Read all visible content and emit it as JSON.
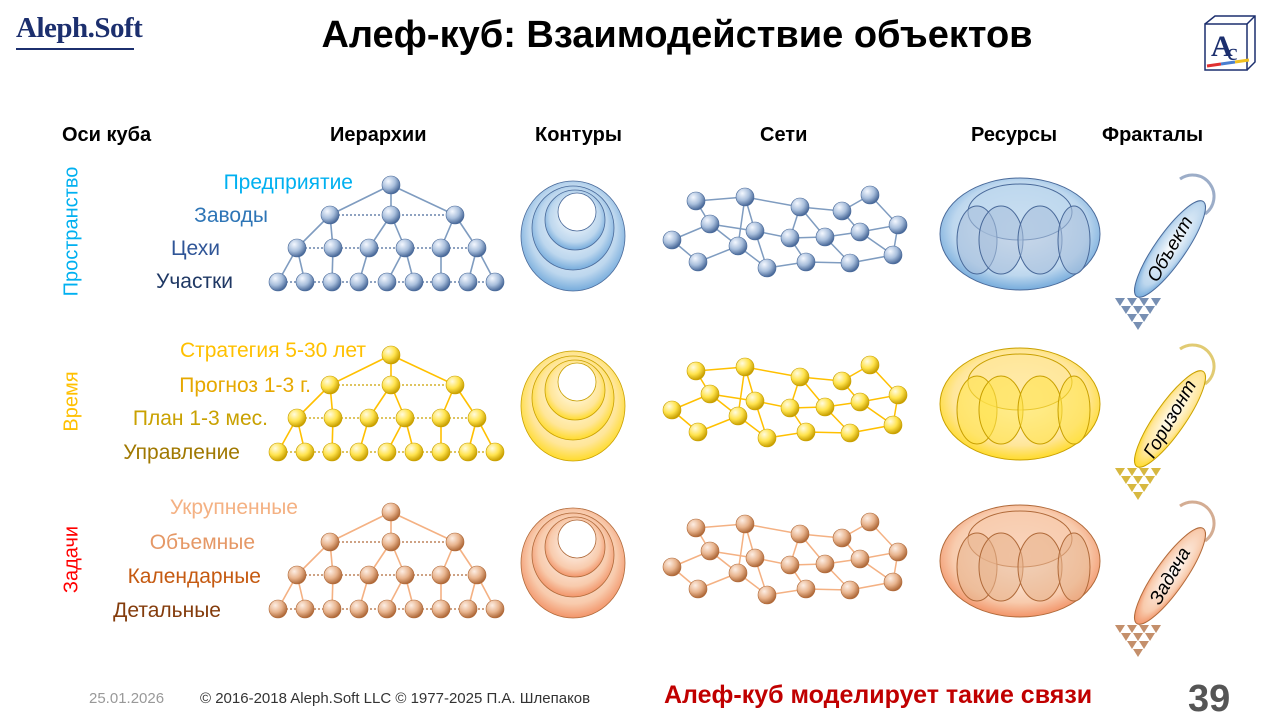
{
  "header": {
    "logo": "Aleph.Soft",
    "title": "Алеф-куб: Взаимодействие объектов"
  },
  "columns": {
    "axes": "Оси куба",
    "hierarchies": "Иерархии",
    "contours": "Контуры",
    "networks": "Сети",
    "resources": "Ресурсы",
    "fractals": "Фракталы"
  },
  "rows": [
    {
      "axis": "Пространство",
      "axis_color": "#00b0f0",
      "levels": [
        "Предприятие",
        "Заводы",
        "Цехи",
        "Участки"
      ],
      "level_colors": [
        "#00b0f0",
        "#2e75b6",
        "#2f5597",
        "#1f3864"
      ],
      "fractal": "Объект",
      "palette": {
        "light": "#f4f8ff",
        "mid": "#a9bfdc",
        "dark": "#4a6a9a",
        "line": "#7f9cc0",
        "contour": "#5b9bd5",
        "fill": "#bdd7ee"
      }
    },
    {
      "axis": "Время",
      "axis_color": "#ffc000",
      "levels": [
        "Стратегия 5-30 лет",
        "Прогноз 1-3 г.",
        "План 1-3 мес.",
        "Управление"
      ],
      "level_colors": [
        "#ffc000",
        "#e6a800",
        "#c9a100",
        "#a07800"
      ],
      "fractal": "Горизонт",
      "palette": {
        "light": "#fffbe0",
        "mid": "#ffe34d",
        "dark": "#c9a000",
        "line": "#ffc000",
        "contour": "#ffd700",
        "fill": "#ffe699"
      }
    },
    {
      "axis": "Задачи",
      "axis_color": "#ff0000",
      "levels": [
        "Укрупненные",
        "Объемные",
        "Календарные",
        "Детальные"
      ],
      "level_colors": [
        "#f4b183",
        "#e59866",
        "#c55a11",
        "#843c0c"
      ],
      "fractal": "Задача",
      "palette": {
        "light": "#fdeee4",
        "mid": "#e8b48e",
        "dark": "#b06a3a",
        "line": "#f4b183",
        "contour": "#f08050",
        "fill": "#f8cbad"
      }
    }
  ],
  "footer": {
    "date": "25.01.2026",
    "copyright": "© 2016-2018 Aleph.Soft LLC © 1977-2025 П.А. Шлепаков",
    "message": "Алеф-куб моделирует такие связи",
    "page": "39"
  }
}
